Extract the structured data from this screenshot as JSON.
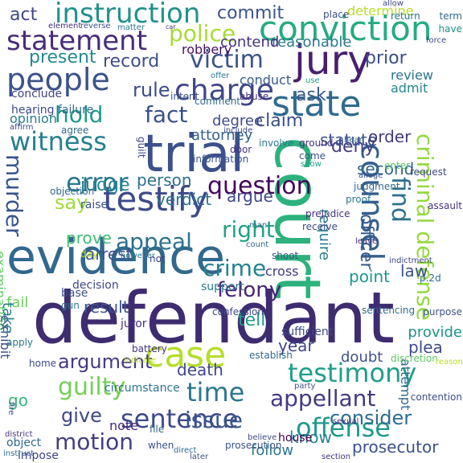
{
  "words": [
    {
      "text": "defendant",
      "color": "#3e2c70"
    },
    {
      "text": "evidence",
      "color": "#31688e"
    },
    {
      "text": "trial",
      "color": "#3b518b"
    },
    {
      "text": "court",
      "color": "#2db27d"
    },
    {
      "text": "testify",
      "color": "#3e4a89"
    },
    {
      "text": "jury",
      "color": "#481f70"
    },
    {
      "text": "case",
      "color": "#b5de2b"
    },
    {
      "text": "state",
      "color": "#2f6b8e"
    },
    {
      "text": "conviction",
      "color": "#25ab82"
    },
    {
      "text": "people",
      "color": "#3b528b"
    },
    {
      "text": "charge",
      "color": "#3f4788"
    },
    {
      "text": "statement",
      "color": "#472d7b"
    },
    {
      "text": "instruction",
      "color": "#21918c"
    },
    {
      "text": "counsel",
      "color": "#355f8d"
    },
    {
      "text": "testimony",
      "color": "#1f9e89"
    },
    {
      "text": "sentence",
      "color": "#3e4989"
    },
    {
      "text": "witness",
      "color": "#277f8e"
    },
    {
      "text": "error",
      "color": "#2a788e"
    },
    {
      "text": "offense",
      "color": "#1f9a8a"
    },
    {
      "text": "appellant",
      "color": "#453882"
    },
    {
      "text": "question",
      "color": "#450559"
    },
    {
      "text": "police",
      "color": "#a8db34"
    },
    {
      "text": "guilty",
      "color": "#73d056"
    },
    {
      "text": "time",
      "color": "#2a778e"
    },
    {
      "text": "crime",
      "color": "#26828e"
    },
    {
      "text": "victim",
      "color": "#3b528b"
    },
    {
      "text": "criminal defense",
      "color": "#95d840"
    },
    {
      "text": "find",
      "color": "#2d708e"
    },
    {
      "text": "murder",
      "color": "#39568c"
    },
    {
      "text": "right",
      "color": "#20a386"
    },
    {
      "text": "appeal",
      "color": "#2c728e"
    },
    {
      "text": "issue",
      "color": "#39568c"
    },
    {
      "text": "motion",
      "color": "#433e85"
    },
    {
      "text": "hold",
      "color": "#1f988b"
    },
    {
      "text": "fact",
      "color": "#3b518b"
    },
    {
      "text": "argument",
      "color": "#443983"
    },
    {
      "text": "see",
      "color": "#2d718e"
    },
    {
      "text": "present",
      "color": "#238a8d"
    },
    {
      "text": "record",
      "color": "#3d4e8a"
    },
    {
      "text": "officer",
      "color": "#365c8d"
    },
    {
      "text": "felony",
      "color": "#482475"
    },
    {
      "text": "consider",
      "color": "#2f6c8e"
    },
    {
      "text": "give",
      "color": "#3f4889"
    },
    {
      "text": "judge",
      "color": "#25838e"
    },
    {
      "text": "rule",
      "color": "#3e4a89"
    },
    {
      "text": "act",
      "color": "#3f4788"
    },
    {
      "text": "commit",
      "color": "#3a548c"
    },
    {
      "text": "prior",
      "color": "#3d4d8a"
    },
    {
      "text": "claim",
      "color": "#3c4f8a"
    },
    {
      "text": "ask",
      "color": "#38598c"
    },
    {
      "text": "deny",
      "color": "#433e85"
    },
    {
      "text": "say",
      "color": "#a0da39"
    },
    {
      "text": "tell",
      "color": "#1e9b8a"
    },
    {
      "text": "person",
      "color": "#2c718e"
    },
    {
      "text": "argue",
      "color": "#3e4a89"
    },
    {
      "text": "year",
      "color": "#3f4788"
    },
    {
      "text": "reasonable",
      "color": "#2a788e"
    },
    {
      "text": "contend",
      "color": "#46327e"
    },
    {
      "text": "robbery",
      "color": "#471063"
    },
    {
      "text": "require",
      "color": "#287c8e"
    },
    {
      "text": "attempt",
      "color": "#2f6b8e"
    },
    {
      "text": "prosecutor",
      "color": "#3b518b"
    },
    {
      "text": "go",
      "color": "#35b779"
    },
    {
      "text": "degree",
      "color": "#3e4c8a"
    },
    {
      "text": "attorney",
      "color": "#34618d"
    },
    {
      "text": "statute",
      "color": "#3b518b"
    },
    {
      "text": "order",
      "color": "#453882"
    },
    {
      "text": "second",
      "color": "#31688e"
    },
    {
      "text": "death",
      "color": "#3f4889"
    },
    {
      "text": "result",
      "color": "#3b528b"
    },
    {
      "text": "point",
      "color": "#1f968b"
    },
    {
      "text": "law",
      "color": "#3a548c"
    },
    {
      "text": "plea",
      "color": "#3e4a89"
    },
    {
      "text": "verdict",
      "color": "#2c718e"
    },
    {
      "text": "review",
      "color": "#2c738e"
    },
    {
      "text": "admit",
      "color": "#25858e"
    },
    {
      "text": "prove",
      "color": "#3dbc74"
    },
    {
      "text": "arrest",
      "color": "#3b528b"
    },
    {
      "text": "follow",
      "color": "#2a788e"
    },
    {
      "text": "note",
      "color": "#482878"
    },
    {
      "text": "opinion",
      "color": "#287d8e"
    },
    {
      "text": "examination",
      "color": "#5ec962"
    },
    {
      "text": "exhibit",
      "color": "#3b528b"
    },
    {
      "text": "conduct",
      "color": "#38598c"
    },
    {
      "text": "determine",
      "color": "#b8de29"
    },
    {
      "text": "conclude",
      "color": "#414487"
    },
    {
      "text": "hearing",
      "color": "#3e4989"
    },
    {
      "text": "failure",
      "color": "#31688e"
    },
    {
      "text": "support",
      "color": "#2a788e"
    },
    {
      "text": "cross",
      "color": "#453781"
    },
    {
      "text": "know",
      "color": "#25838e"
    },
    {
      "text": "fail",
      "color": "#6ece58"
    },
    {
      "text": "decision",
      "color": "#3f4788"
    },
    {
      "text": "take",
      "color": "#2a788e"
    },
    {
      "text": "doubt",
      "color": "#3b528b"
    },
    {
      "text": "provide",
      "color": "#21918c"
    },
    {
      "text": "circumstance",
      "color": "#2c728e"
    },
    {
      "text": "house",
      "color": "#440154"
    },
    {
      "text": "sufficient",
      "color": "#3e4a89"
    },
    {
      "text": "object",
      "color": "#31688e"
    },
    {
      "text": "impose",
      "color": "#414487"
    },
    {
      "text": "place",
      "color": "#3b528b"
    },
    {
      "text": "return",
      "color": "#2a788e"
    },
    {
      "text": "allow",
      "color": "#3e4a89"
    },
    {
      "text": "term",
      "color": "#31688e"
    },
    {
      "text": "have",
      "color": "#21918c"
    },
    {
      "text": "element",
      "color": "#46327e"
    },
    {
      "text": "reverse",
      "color": "#3b528b"
    },
    {
      "text": "matter",
      "color": "#2a788e"
    },
    {
      "text": "car",
      "color": "#453882"
    },
    {
      "text": "force",
      "color": "#3e4a89"
    },
    {
      "text": "comment",
      "color": "#31688e"
    },
    {
      "text": "intent",
      "color": "#3b528b"
    },
    {
      "text": "offer",
      "color": "#2a788e"
    },
    {
      "text": "use",
      "color": "#1f9e89"
    },
    {
      "text": "abuse",
      "color": "#46327e"
    },
    {
      "text": "affirm",
      "color": "#3e4a89"
    },
    {
      "text": "agree",
      "color": "#31688e"
    },
    {
      "text": "information",
      "color": "#3b528b"
    },
    {
      "text": "involve",
      "color": "#2a788e"
    },
    {
      "text": "include",
      "color": "#3e4a89"
    },
    {
      "text": "ground",
      "color": "#46327e"
    },
    {
      "text": "come",
      "color": "#3b528b"
    },
    {
      "text": "hear",
      "color": "#31688e"
    },
    {
      "text": "enter",
      "color": "#5ec962"
    },
    {
      "text": "request",
      "color": "#3e4a89"
    },
    {
      "text": "judgment",
      "color": "#31688e"
    },
    {
      "text": "proof",
      "color": "#2a788e"
    },
    {
      "text": "allege",
      "color": "#3b528b"
    },
    {
      "text": "show",
      "color": "#1f9e89"
    },
    {
      "text": "door",
      "color": "#46327e"
    },
    {
      "text": "guilt",
      "color": "#3e4a89"
    },
    {
      "text": "objection",
      "color": "#31688e"
    },
    {
      "text": "raise",
      "color": "#3b528b"
    },
    {
      "text": "prejudice",
      "color": "#46327e"
    },
    {
      "text": "receive",
      "color": "#3e4a89"
    },
    {
      "text": "man",
      "color": "#31688e"
    },
    {
      "text": "assault",
      "color": "#46327e"
    },
    {
      "text": "day",
      "color": "#b8de29"
    },
    {
      "text": "however",
      "color": "#2a788e"
    },
    {
      "text": "not",
      "color": "#3e4a89"
    },
    {
      "text": "count",
      "color": "#31688e"
    },
    {
      "text": "shoot",
      "color": "#3b528b"
    },
    {
      "text": "leave",
      "color": "#46327e"
    },
    {
      "text": "indictment",
      "color": "#3e4a89"
    },
    {
      "text": "p.2d",
      "color": "#31688e"
    },
    {
      "text": "base",
      "color": "#3b528b"
    },
    {
      "text": "gun",
      "color": "#2a788e"
    },
    {
      "text": "juror",
      "color": "#46327e"
    },
    {
      "text": "confession",
      "color": "#3e4a89"
    },
    {
      "text": "sentencing",
      "color": "#31688e"
    },
    {
      "text": "purpose",
      "color": "#3b528b"
    },
    {
      "text": "apply",
      "color": "#2a788e"
    },
    {
      "text": "battery",
      "color": "#46327e"
    },
    {
      "text": "indicate",
      "color": "#b8de29"
    },
    {
      "text": "home",
      "color": "#3e4a89"
    },
    {
      "text": "discretion",
      "color": "#5ec962"
    },
    {
      "text": "establish",
      "color": "#31688e"
    },
    {
      "text": "reason",
      "color": "#b8de29"
    },
    {
      "text": "party",
      "color": "#3b528b"
    },
    {
      "text": "contention",
      "color": "#3e4a89"
    },
    {
      "text": "file",
      "color": "#31688e"
    },
    {
      "text": "sexual",
      "color": "#46327e"
    },
    {
      "text": "when",
      "color": "#3b528b"
    },
    {
      "text": "believe",
      "color": "#3e4a89"
    },
    {
      "text": "direct",
      "color": "#31688e"
    },
    {
      "text": "later",
      "color": "#3b528b"
    },
    {
      "text": "section",
      "color": "#46327e"
    },
    {
      "text": "fire",
      "color": "#3e4a89"
    },
    {
      "text": "instruct",
      "color": "#31688e"
    },
    {
      "text": "prosecution",
      "color": "#3b528b"
    },
    {
      "text": "district",
      "color": "#46327e"
    }
  ]
}
